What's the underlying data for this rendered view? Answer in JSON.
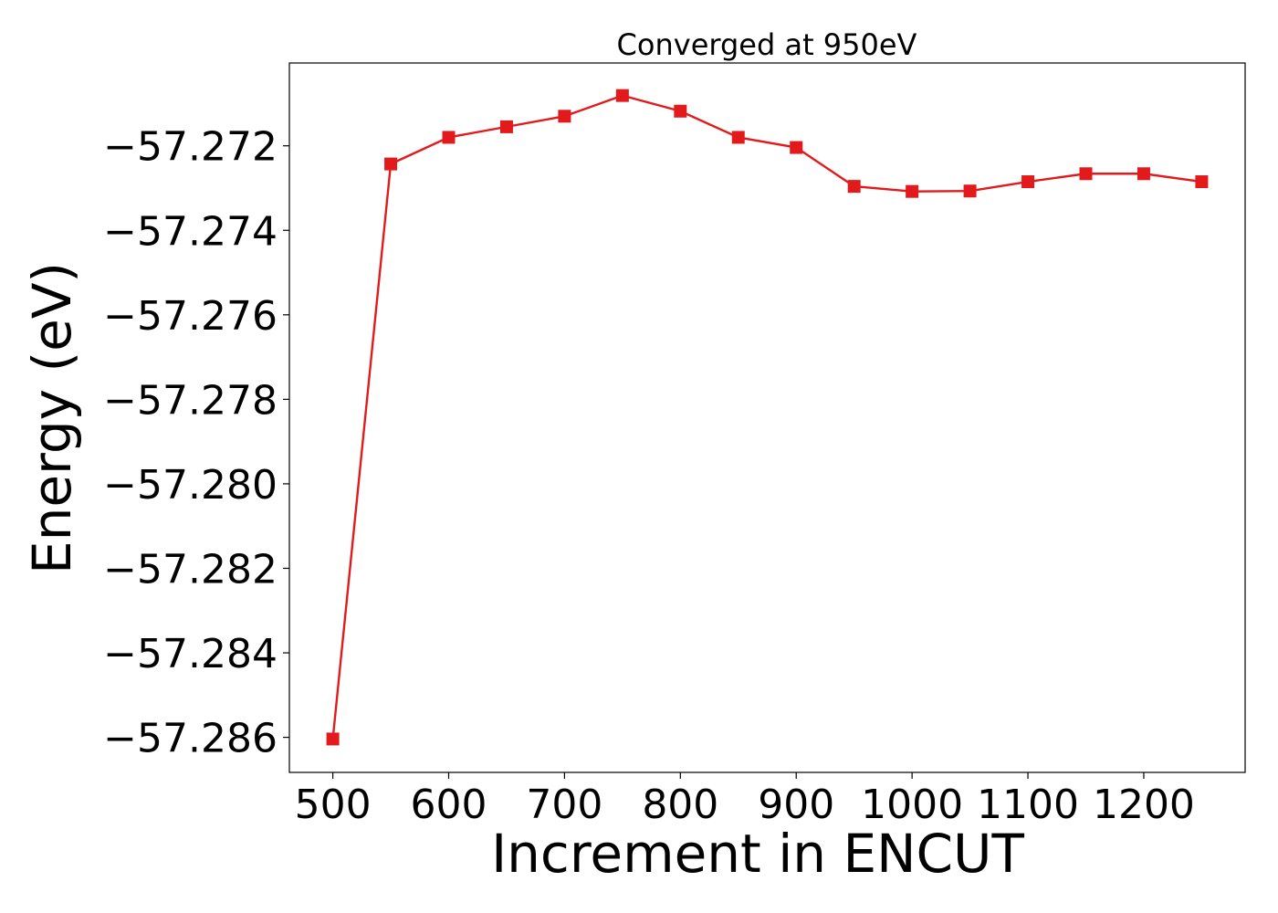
{
  "chart_data": {
    "type": "line",
    "title": "Converged at 950eV",
    "xlabel": "Increment in ENCUT",
    "ylabel": "Energy (eV)",
    "x": [
      500,
      550,
      600,
      650,
      700,
      750,
      800,
      850,
      900,
      950,
      1000,
      1050,
      1100,
      1150,
      1200,
      1250
    ],
    "series": [
      {
        "values": [
          -57.28604,
          -57.27243,
          -57.2718,
          -57.27155,
          -57.2713,
          -57.27081,
          -57.27118,
          -57.2718,
          -57.27204,
          -57.27296,
          -57.27308,
          -57.27307,
          -57.27285,
          -57.27266,
          -57.27266,
          -57.27285
        ],
        "color": "#e31a1c",
        "marker": "square"
      }
    ],
    "xticks": [
      500,
      600,
      700,
      800,
      900,
      1000,
      1100,
      1200
    ],
    "xtick_labels": [
      "500",
      "600",
      "700",
      "800",
      "900",
      "1000",
      "1100",
      "1200"
    ],
    "yticks": [
      -57.272,
      -57.274,
      -57.276,
      -57.278,
      -57.28,
      -57.282,
      -57.284,
      -57.286
    ],
    "ytick_labels": [
      "−57.272",
      "−57.274",
      "−57.276",
      "−57.278",
      "−57.280",
      "−57.282",
      "−57.284",
      "−57.286"
    ],
    "xlim": [
      462.5,
      1287.5
    ],
    "ylim": [
      -57.28683,
      -57.27004
    ],
    "grid": false
  }
}
